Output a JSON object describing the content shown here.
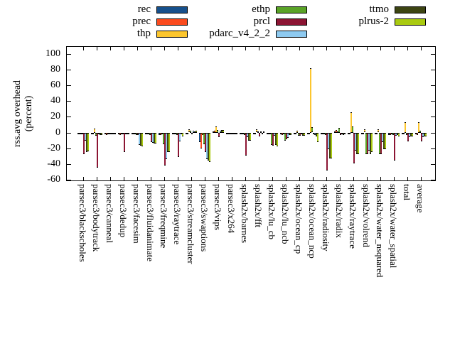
{
  "chart_data": {
    "type": "bar",
    "title": "",
    "ylabel_lines": [
      "rss.avg overhead",
      "(percent)"
    ],
    "ylim": [
      -62,
      110
    ],
    "yticks": [
      100,
      80,
      60,
      40,
      20,
      0,
      -20,
      -40,
      -60
    ],
    "grid": false,
    "legend_position": "top, 3 columns",
    "categories": [
      "parsec3/blackscholes",
      "parsec3/bodytrack",
      "parsec3/canneal",
      "parsec3/dedup",
      "parsec3/facesim",
      "parsec3/fluidanimate",
      "parsec3/freqmine",
      "parsec3/raytrace",
      "parsec3/streamcluster",
      "parsec3/swaptions",
      "parsec3/vips",
      "parsec3/x264",
      "splash2x/barnes",
      "splash2x/fft",
      "splash2x/lu_cb",
      "splash2x/lu_ncb",
      "splash2x/ocean_cp",
      "splash2x/ocean_ncp",
      "splash2x/radiosity",
      "splash2x/radix",
      "splash2x/raytrace",
      "splash2x/volrend",
      "splash2x/water_nsquared",
      "splash2x/water_spatial",
      "total",
      "average"
    ],
    "series": [
      {
        "name": "rec",
        "color": "#16508c",
        "values": [
          -2,
          -2,
          -1,
          -2,
          -2,
          -2,
          -3,
          -2,
          -2,
          -12,
          1,
          -1,
          -2,
          -2,
          -2,
          -2,
          -1,
          -1,
          -2,
          1,
          -2,
          -2,
          -2,
          -3,
          -2,
          -2
        ]
      },
      {
        "name": "prec",
        "color": "#fb4b1e",
        "values": [
          -2,
          -2,
          -3,
          -3,
          -2,
          -2,
          -3,
          -2,
          -2,
          -20,
          2,
          -1,
          -2,
          -2,
          -2,
          -3,
          -1,
          -1,
          -2,
          3,
          -2,
          -2,
          -2,
          -3,
          -2,
          -3
        ]
      },
      {
        "name": "thp",
        "color": "#fcc62e",
        "values": [
          -1,
          5,
          -1,
          -1,
          -1,
          -1,
          -2,
          -1,
          4,
          -3,
          8,
          -1,
          -1,
          4,
          -1,
          -1,
          2,
          82,
          -2,
          1,
          26,
          4,
          4,
          -2,
          13,
          13
        ]
      },
      {
        "name": "ethp",
        "color": "#5aa327",
        "values": [
          -2,
          -4,
          -1,
          -2,
          -3,
          -3,
          -15,
          -3,
          2,
          -15,
          3,
          -1,
          -3,
          1,
          -16,
          -10,
          -4,
          7,
          -3,
          6,
          8,
          -28,
          -28,
          -3,
          -3,
          2
        ]
      },
      {
        "name": "prcl",
        "color": "#8c1533",
        "values": [
          -28,
          -45,
          -2,
          -25,
          -3,
          -12,
          -42,
          -31,
          -2,
          -25,
          -6,
          -2,
          -29,
          -5,
          -17,
          -9,
          -4,
          -2,
          -48,
          -3,
          -39,
          -28,
          -28,
          -36,
          -11,
          -11
        ]
      },
      {
        "name": "pdarc_v4_2_2",
        "color": "#8ecaf0",
        "values": [
          -10,
          -2,
          -1,
          -2,
          -16,
          -13,
          -34,
          -11,
          2,
          -34,
          2,
          -1,
          -6,
          1,
          -4,
          -7,
          -1,
          -3,
          -21,
          -2,
          -23,
          -23,
          -12,
          -4,
          -6,
          -6
        ]
      },
      {
        "name": "ttmo",
        "color": "#3c4412",
        "values": [
          -25,
          -3,
          -2,
          -2,
          -17,
          -14,
          -25,
          -2,
          1,
          -36,
          3,
          -2,
          -10,
          -2,
          -16,
          -3,
          -4,
          -5,
          -33,
          -3,
          -28,
          -28,
          -21,
          -3,
          -5,
          -5
        ]
      },
      {
        "name": "plrus-2",
        "color": "#a9ca10",
        "values": [
          -24,
          -3,
          -2,
          -2,
          -18,
          -14,
          -25,
          -5,
          2,
          -38,
          3,
          -2,
          -10,
          1,
          -18,
          -3,
          -4,
          -12,
          -33,
          -2,
          -28,
          -25,
          -21,
          -5,
          -5,
          -5
        ]
      }
    ]
  },
  "layout_colors": {
    "background": "#ffffff",
    "axis": "#000000",
    "text": "#000000"
  }
}
